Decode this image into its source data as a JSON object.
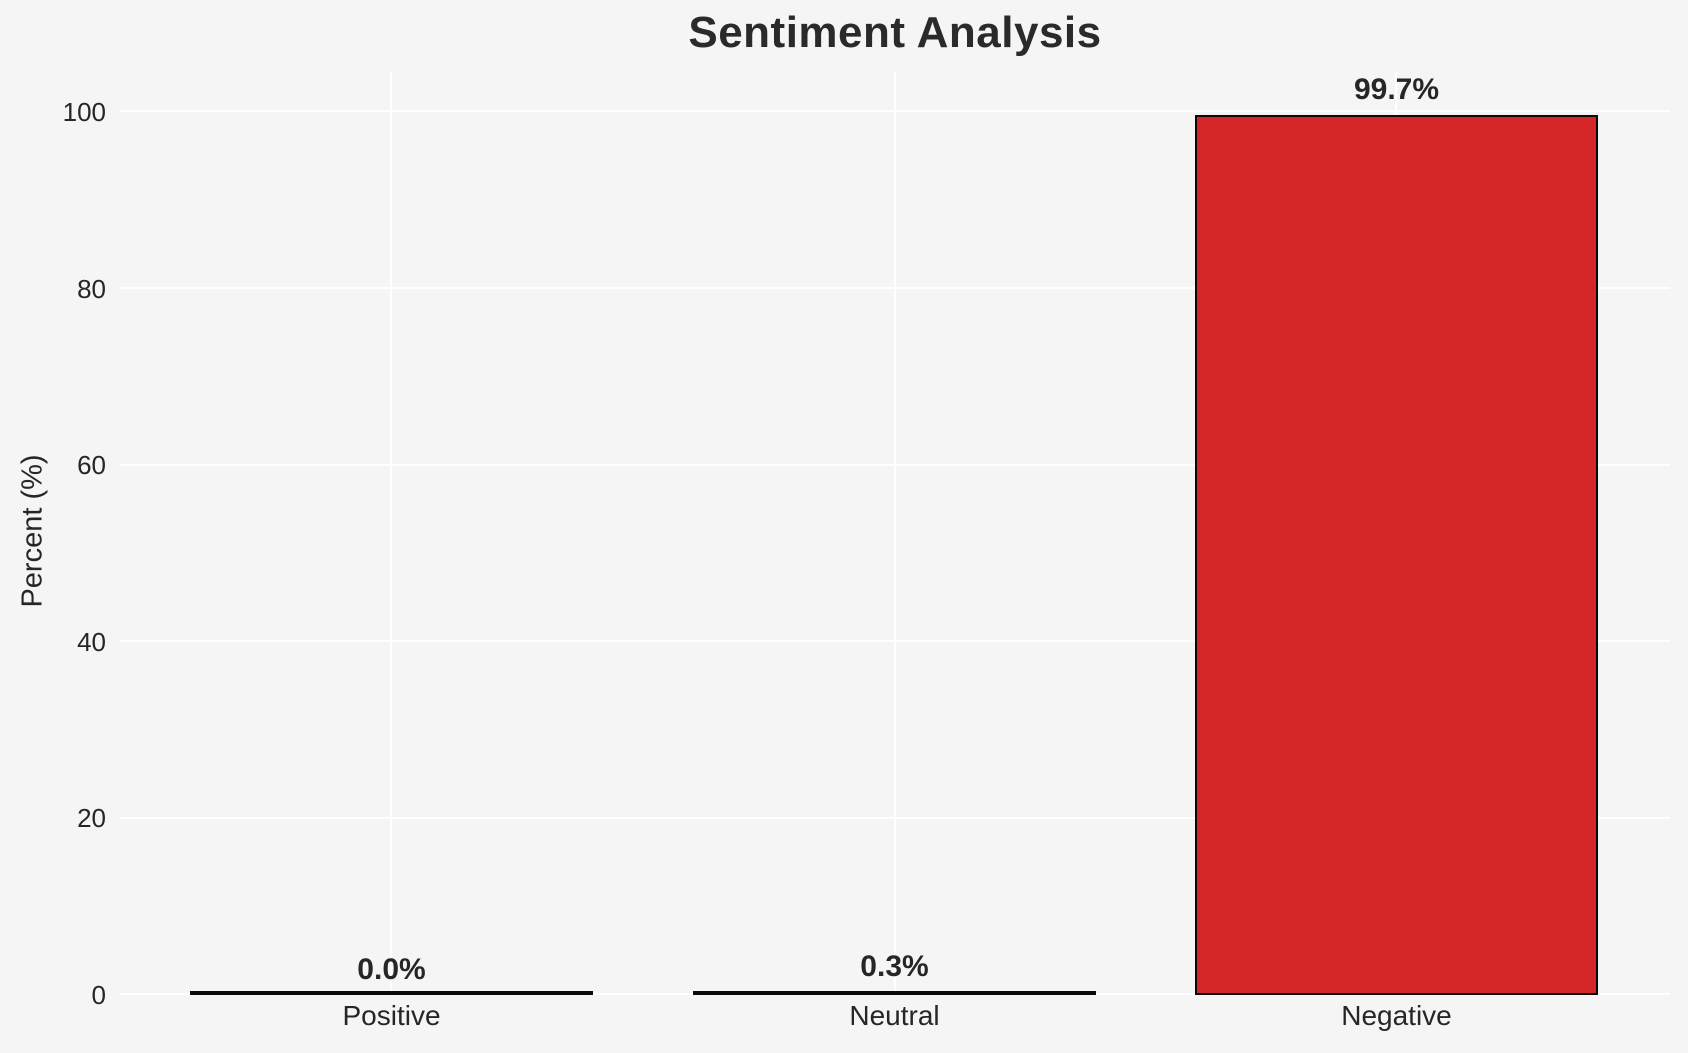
{
  "chart_data": {
    "type": "bar",
    "title": "Sentiment Analysis",
    "xlabel": "",
    "ylabel": "Percent (%)",
    "categories": [
      "Positive",
      "Neutral",
      "Negative"
    ],
    "values": [
      0.0,
      0.3,
      99.7
    ],
    "value_labels": [
      "0.0%",
      "0.3%",
      "99.7%"
    ],
    "yticks": [
      0,
      20,
      40,
      60,
      80,
      100
    ],
    "ylim": [
      0,
      104.5
    ],
    "grid": "on",
    "legend": "none",
    "bar_color": "#d62728",
    "bar_edge_color": "#0a0a0a",
    "background_color": "#f5f5f6",
    "gridline_color": "#ffffff",
    "text_color": "#262626"
  }
}
